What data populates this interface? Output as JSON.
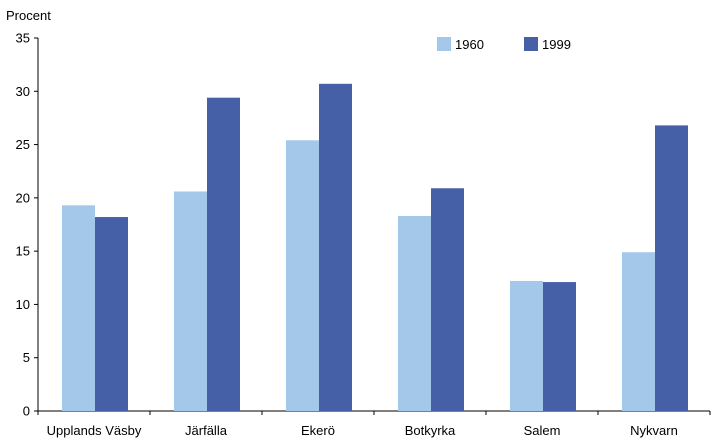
{
  "chart_data": {
    "type": "bar",
    "ylabel": "Procent",
    "categories": [
      "Upplands Väsby",
      "Järfälla",
      "Ekerö",
      "Botkyrka",
      "Salem",
      "Nykvarn"
    ],
    "series": [
      {
        "name": "1960",
        "color": "#a4c8e9",
        "values": [
          19.3,
          20.6,
          25.4,
          18.3,
          12.2,
          14.9
        ]
      },
      {
        "name": "1999",
        "color": "#4660a8",
        "values": [
          18.2,
          29.4,
          30.7,
          20.9,
          12.1,
          26.8
        ]
      }
    ],
    "ylim": [
      0,
      35
    ],
    "yticks": [
      0,
      5,
      10,
      15,
      20,
      25,
      30,
      35
    ],
    "grid": false,
    "legend_position": "top-right"
  }
}
